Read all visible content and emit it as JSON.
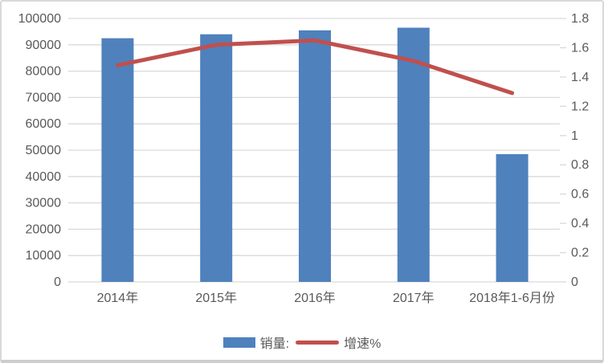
{
  "chart_data": {
    "type": "combo",
    "title": "",
    "categories": [
      "2014年",
      "2015年",
      "2016年",
      "2017年",
      "2018年1-6月份"
    ],
    "series": [
      {
        "name": "销量:",
        "type": "bar",
        "axis": "left",
        "color": "#4F81BD",
        "values": [
          92500,
          94000,
          95500,
          96500,
          48500
        ]
      },
      {
        "name": "增速%",
        "type": "line",
        "axis": "right",
        "color": "#C0504D",
        "values": [
          1.48,
          1.62,
          1.65,
          1.51,
          1.29
        ]
      }
    ],
    "left_axis": {
      "min": 0,
      "max": 100000,
      "step": 10000,
      "tick_labels": [
        "0",
        "10000",
        "20000",
        "30000",
        "40000",
        "50000",
        "60000",
        "70000",
        "80000",
        "90000",
        "100000"
      ]
    },
    "right_axis": {
      "min": 0,
      "max": 1.8,
      "step": 0.2,
      "tick_labels": [
        "0",
        "0.2",
        "0.4",
        "0.6",
        "0.8",
        "1",
        "1.2",
        "1.4",
        "1.6",
        "1.8"
      ]
    },
    "grid": true,
    "legend_position": "bottom"
  },
  "style": {
    "bar_color": "#4F81BD",
    "line_color": "#C0504D",
    "grid_color": "#D9D9D9",
    "text_color": "#595959",
    "frame_border_color": "#D9D9D9"
  }
}
